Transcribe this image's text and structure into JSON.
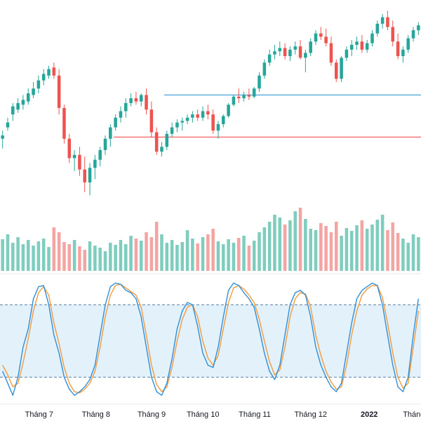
{
  "chart_data": {
    "type": "candlestick",
    "instrument_title": "",
    "panels": [
      "price",
      "volume",
      "stochastic"
    ],
    "x_axis_labels": [
      "Tháng 7",
      "Tháng 8",
      "Tháng 9",
      "Tháng 10",
      "Tháng 11",
      "Tháng 12",
      "2022",
      "Tháng"
    ],
    "x_axis_label_positions": [
      0.093,
      0.228,
      0.36,
      0.482,
      0.605,
      0.738,
      0.877,
      0.983
    ],
    "ohlc": [
      [
        0.35,
        0.4,
        0.29,
        0.37
      ],
      [
        0.42,
        0.48,
        0.4,
        0.45
      ],
      [
        0.5,
        0.57,
        0.46,
        0.55
      ],
      [
        0.53,
        0.6,
        0.51,
        0.57
      ],
      [
        0.56,
        0.62,
        0.53,
        0.59
      ],
      [
        0.58,
        0.66,
        0.56,
        0.63
      ],
      [
        0.62,
        0.7,
        0.6,
        0.66
      ],
      [
        0.66,
        0.74,
        0.63,
        0.71
      ],
      [
        0.71,
        0.78,
        0.68,
        0.75
      ],
      [
        0.74,
        0.8,
        0.72,
        0.78
      ],
      [
        0.79,
        0.82,
        0.72,
        0.74
      ],
      [
        0.74,
        0.78,
        0.5,
        0.54
      ],
      [
        0.54,
        0.56,
        0.32,
        0.35
      ],
      [
        0.35,
        0.38,
        0.2,
        0.23
      ],
      [
        0.23,
        0.28,
        0.15,
        0.25
      ],
      [
        0.25,
        0.3,
        0.12,
        0.16
      ],
      [
        0.16,
        0.24,
        0.02,
        0.08
      ],
      [
        0.08,
        0.2,
        0.0,
        0.17
      ],
      [
        0.17,
        0.25,
        0.1,
        0.22
      ],
      [
        0.22,
        0.3,
        0.18,
        0.28
      ],
      [
        0.28,
        0.37,
        0.25,
        0.35
      ],
      [
        0.35,
        0.44,
        0.3,
        0.42
      ],
      [
        0.42,
        0.5,
        0.4,
        0.48
      ],
      [
        0.48,
        0.55,
        0.45,
        0.52
      ],
      [
        0.52,
        0.6,
        0.48,
        0.57
      ],
      [
        0.57,
        0.63,
        0.55,
        0.6
      ],
      [
        0.6,
        0.64,
        0.56,
        0.58
      ],
      [
        0.58,
        0.63,
        0.55,
        0.62
      ],
      [
        0.62,
        0.66,
        0.5,
        0.53
      ],
      [
        0.53,
        0.58,
        0.36,
        0.39
      ],
      [
        0.39,
        0.42,
        0.25,
        0.27
      ],
      [
        0.27,
        0.33,
        0.24,
        0.3
      ],
      [
        0.3,
        0.4,
        0.28,
        0.38
      ],
      [
        0.38,
        0.45,
        0.36,
        0.42
      ],
      [
        0.42,
        0.47,
        0.39,
        0.45
      ],
      [
        0.45,
        0.48,
        0.4,
        0.46
      ],
      [
        0.46,
        0.5,
        0.44,
        0.48
      ],
      [
        0.48,
        0.52,
        0.45,
        0.5
      ],
      [
        0.5,
        0.53,
        0.46,
        0.48
      ],
      [
        0.48,
        0.55,
        0.46,
        0.52
      ],
      [
        0.52,
        0.56,
        0.47,
        0.5
      ],
      [
        0.5,
        0.53,
        0.38,
        0.4
      ],
      [
        0.4,
        0.46,
        0.35,
        0.44
      ],
      [
        0.44,
        0.5,
        0.42,
        0.49
      ],
      [
        0.49,
        0.57,
        0.48,
        0.56
      ],
      [
        0.56,
        0.62,
        0.55,
        0.61
      ],
      [
        0.61,
        0.66,
        0.57,
        0.6
      ],
      [
        0.6,
        0.64,
        0.58,
        0.62
      ],
      [
        0.62,
        0.66,
        0.59,
        0.61
      ],
      [
        0.61,
        0.67,
        0.6,
        0.66
      ],
      [
        0.66,
        0.76,
        0.64,
        0.74
      ],
      [
        0.74,
        0.84,
        0.72,
        0.82
      ],
      [
        0.82,
        0.9,
        0.8,
        0.87
      ],
      [
        0.87,
        0.93,
        0.84,
        0.89
      ],
      [
        0.89,
        0.95,
        0.86,
        0.91
      ],
      [
        0.91,
        0.94,
        0.84,
        0.86
      ],
      [
        0.86,
        0.92,
        0.83,
        0.9
      ],
      [
        0.9,
        0.95,
        0.87,
        0.92
      ],
      [
        0.92,
        0.96,
        0.84,
        0.85
      ],
      [
        0.85,
        0.9,
        0.76,
        0.88
      ],
      [
        0.88,
        0.97,
        0.86,
        0.95
      ],
      [
        0.95,
        1.02,
        0.93,
        1.0
      ],
      [
        1.0,
        1.04,
        0.96,
        0.98
      ],
      [
        0.98,
        1.03,
        0.92,
        0.94
      ],
      [
        0.94,
        0.98,
        0.8,
        0.82
      ],
      [
        0.82,
        0.84,
        0.7,
        0.72
      ],
      [
        0.72,
        0.86,
        0.7,
        0.85
      ],
      [
        0.85,
        0.92,
        0.83,
        0.9
      ],
      [
        0.9,
        0.96,
        0.86,
        0.93
      ],
      [
        0.93,
        0.98,
        0.9,
        0.95
      ],
      [
        0.95,
        0.99,
        0.88,
        0.9
      ],
      [
        0.9,
        0.96,
        0.88,
        0.94
      ],
      [
        0.94,
        1.02,
        0.92,
        1.0
      ],
      [
        1.0,
        1.08,
        0.98,
        1.06
      ],
      [
        1.06,
        1.12,
        1.03,
        1.1
      ],
      [
        1.1,
        1.14,
        1.02,
        1.04
      ],
      [
        1.04,
        1.08,
        0.92,
        0.95
      ],
      [
        0.95,
        1.0,
        0.84,
        0.86
      ],
      [
        0.86,
        0.92,
        0.82,
        0.9
      ],
      [
        0.9,
        0.99,
        0.88,
        0.97
      ],
      [
        0.97,
        1.04,
        0.95,
        1.02
      ],
      [
        1.02,
        1.07,
        0.99,
        1.05
      ]
    ],
    "volume": [
      0.45,
      0.52,
      0.4,
      0.48,
      0.38,
      0.44,
      0.36,
      0.42,
      0.46,
      0.34,
      0.62,
      0.55,
      0.41,
      0.38,
      0.44,
      0.35,
      0.3,
      0.42,
      0.36,
      0.33,
      0.28,
      0.4,
      0.37,
      0.44,
      0.38,
      0.5,
      0.46,
      0.43,
      0.55,
      0.48,
      0.7,
      0.52,
      0.4,
      0.44,
      0.37,
      0.41,
      0.58,
      0.46,
      0.39,
      0.48,
      0.52,
      0.6,
      0.42,
      0.38,
      0.45,
      0.4,
      0.47,
      0.5,
      0.36,
      0.43,
      0.55,
      0.62,
      0.7,
      0.8,
      0.76,
      0.66,
      0.72,
      0.85,
      0.9,
      0.74,
      0.6,
      0.58,
      0.68,
      0.64,
      0.55,
      0.7,
      0.5,
      0.61,
      0.57,
      0.65,
      0.72,
      0.6,
      0.66,
      0.73,
      0.8,
      0.58,
      0.69,
      0.54,
      0.46,
      0.4,
      0.52,
      0.48
    ],
    "stoch_k": [
      25,
      15,
      5,
      20,
      45,
      60,
      85,
      95,
      96,
      80,
      55,
      40,
      20,
      10,
      5,
      8,
      12,
      18,
      30,
      55,
      80,
      95,
      98,
      97,
      92,
      90,
      85,
      70,
      45,
      20,
      8,
      5,
      15,
      35,
      60,
      75,
      82,
      80,
      62,
      40,
      30,
      28,
      45,
      70,
      92,
      98,
      96,
      90,
      85,
      78,
      60,
      40,
      25,
      18,
      30,
      55,
      80,
      90,
      92,
      88,
      70,
      45,
      30,
      20,
      12,
      8,
      15,
      40,
      65,
      85,
      92,
      95,
      98,
      96,
      80,
      55,
      30,
      12,
      8,
      20,
      55,
      85
    ],
    "stoch_d": [
      30,
      22,
      12,
      15,
      32,
      52,
      75,
      90,
      95,
      88,
      65,
      48,
      28,
      15,
      8,
      7,
      10,
      15,
      25,
      45,
      70,
      88,
      96,
      97,
      94,
      91,
      88,
      78,
      55,
      30,
      14,
      8,
      12,
      28,
      50,
      68,
      78,
      80,
      70,
      50,
      36,
      30,
      38,
      60,
      82,
      94,
      96,
      93,
      88,
      82,
      68,
      50,
      33,
      22,
      26,
      45,
      70,
      85,
      90,
      89,
      78,
      55,
      38,
      25,
      16,
      10,
      12,
      30,
      55,
      75,
      88,
      93,
      96,
      96,
      86,
      65,
      40,
      20,
      11,
      15,
      45,
      75
    ],
    "stoch_levels": [
      80,
      20
    ],
    "reference_lines": [
      {
        "panel": "price",
        "level": 0.62,
        "color": "#4aa3d8",
        "start": 0.39
      },
      {
        "panel": "price",
        "level": 0.36,
        "color": "#ef6461",
        "start": 0.27
      }
    ],
    "price_range": [
      -0.05,
      1.12
    ],
    "stoch_range": [
      0,
      100
    ],
    "colors": {
      "up": "#26a69a",
      "down": "#ef5350",
      "volume_up": "#7fcdbf",
      "volume_down": "#f4a4a2",
      "stoch_k": "#2f8fd8",
      "stoch_d": "#f49a3a",
      "stoch_band": "#e3f1fb",
      "stoch_level": "#5a7fa3",
      "separator": "#e6e9ef",
      "axis_text": "#131722"
    },
    "grid": false,
    "legend": "none"
  }
}
